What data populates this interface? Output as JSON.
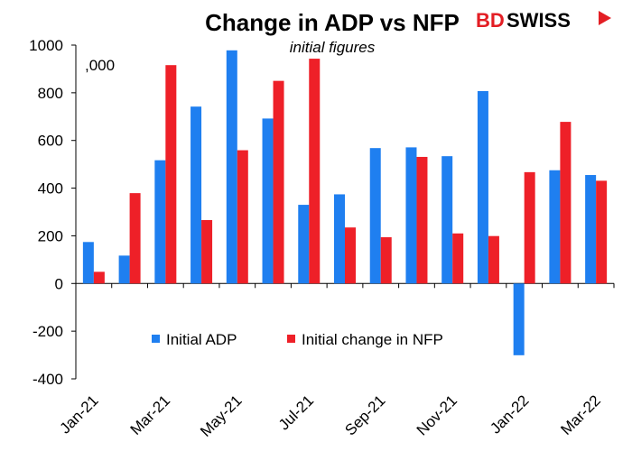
{
  "brand": {
    "prefix": "BD",
    "name": "SWISS",
    "color": "#e31e24"
  },
  "chart_data": {
    "type": "bar",
    "title": "Change in ADP vs NFP",
    "subtitle": "initial figures",
    "unit_label": ",000",
    "ylim": [
      -400,
      1000
    ],
    "yticks": [
      -400,
      -200,
      0,
      200,
      400,
      600,
      800,
      1000
    ],
    "categories": [
      "Jan-21",
      "Feb-21",
      "Mar-21",
      "Apr-21",
      "May-21",
      "Jun-21",
      "Jul-21",
      "Aug-21",
      "Sep-21",
      "Oct-21",
      "Nov-21",
      "Dec-21",
      "Jan-22",
      "Feb-22",
      "Mar-22"
    ],
    "xtick_labels": [
      "Jan-21",
      "Mar-21",
      "May-21",
      "Jul-21",
      "Sep-21",
      "Nov-21",
      "Jan-22",
      "Mar-22"
    ],
    "series": [
      {
        "name": "Initial ADP",
        "color": "#1f7ff0",
        "values": [
          174,
          117,
          517,
          742,
          978,
          692,
          330,
          374,
          568,
          571,
          534,
          807,
          -301,
          475,
          455
        ]
      },
      {
        "name": "Initial change in NFP",
        "color": "#ee2028",
        "values": [
          49,
          379,
          916,
          266,
          559,
          850,
          943,
          235,
          194,
          531,
          210,
          199,
          467,
          678,
          431
        ]
      }
    ],
    "legend_position": "lower-center",
    "grid": false
  }
}
